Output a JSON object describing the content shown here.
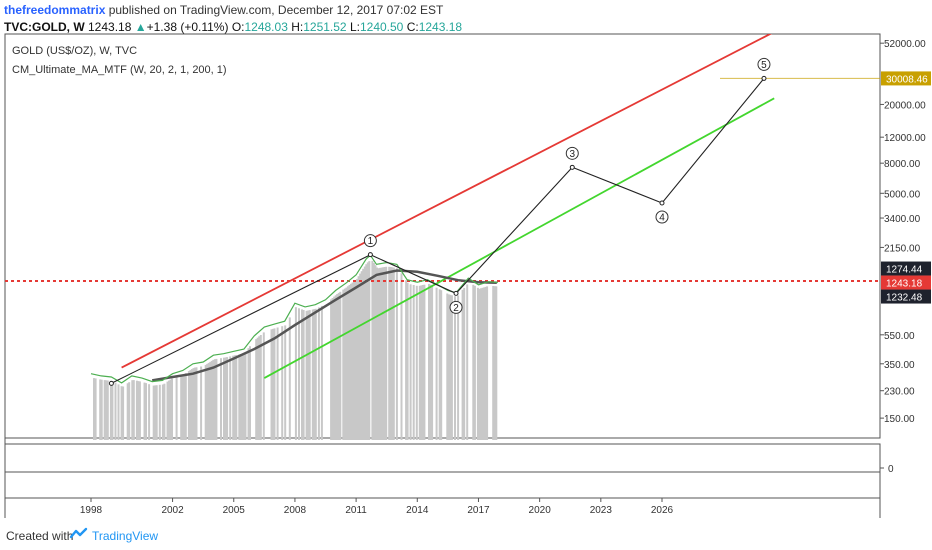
{
  "header": {
    "author": "thefreedommatrix",
    "published": " published on TradingView.com, December 12, 2017 07:02 EST",
    "symbol": "TVC:GOLD, W",
    "last": "1243.18",
    "change": "+1.38 (+0.11%)",
    "o_label": "O:",
    "o_value": "1248.03",
    "h_label": "H:",
    "h_value": "1251.52",
    "l_label": "L:",
    "l_value": "1240.50",
    "c_label": "C:",
    "c_value": "1243.18"
  },
  "legend": {
    "series_title": "GOLD (US$/OZ), W, TVC",
    "indicator": "CM_Ultimate_MA_MTF (W, 20, 2, 1, 200, 1)"
  },
  "footer": {
    "created_with": "Created with",
    "brand": "TradingView"
  },
  "colors": {
    "upper_channel": "#e53935",
    "lower_channel": "#43d62e",
    "dotted_level": "#e53935",
    "moving_average": "#555555",
    "wave_path": "#222222",
    "volume_bars": "#c8c8c8",
    "price_tag_current": "#e53935",
    "price_tag_dark": "#1e222d",
    "price_tag_target": "#c8a000"
  },
  "chart_data": {
    "type": "line",
    "x_axis": {
      "ticks": [
        "1998",
        "2002",
        "2005",
        "2008",
        "2011",
        "2014",
        "2017",
        "2020",
        "2023",
        "2026"
      ]
    },
    "y_axis": {
      "scale": "log",
      "ticks": [
        "52000.00",
        "30008.46",
        "20000.00",
        "12000.00",
        "8000.00",
        "5000.00",
        "3400.00",
        "2150.00",
        "1274.44",
        "1243.18",
        "1232.48",
        "550.00",
        "350.00",
        "230.00",
        "150.00"
      ],
      "range": [
        110,
        60000
      ]
    },
    "price_tags": [
      {
        "value": 30008.46,
        "text": "30008.46",
        "style": "target"
      },
      {
        "value": 1274.44,
        "text": "1274.44",
        "style": "dark"
      },
      {
        "value": 1243.18,
        "text": "1243.18",
        "style": "current"
      },
      {
        "value": 1232.48,
        "text": "1232.48",
        "style": "dark"
      }
    ],
    "indicator_pane": {
      "ticks": [
        "0"
      ]
    },
    "series": [
      {
        "name": "GOLD (US$/OZ), W, TVC",
        "points": [
          [
            1998.0,
            300
          ],
          [
            1998.5,
            290
          ],
          [
            1999.0,
            285
          ],
          [
            1999.5,
            260
          ],
          [
            2000.0,
            290
          ],
          [
            2000.5,
            280
          ],
          [
            2001.0,
            265
          ],
          [
            2001.5,
            270
          ],
          [
            2002.0,
            300
          ],
          [
            2002.5,
            315
          ],
          [
            2003.0,
            350
          ],
          [
            2003.5,
            360
          ],
          [
            2004.0,
            400
          ],
          [
            2004.5,
            410
          ],
          [
            2005.0,
            425
          ],
          [
            2005.5,
            440
          ],
          [
            2006.0,
            540
          ],
          [
            2006.5,
            620
          ],
          [
            2007.0,
            650
          ],
          [
            2007.5,
            680
          ],
          [
            2008.0,
            900
          ],
          [
            2008.5,
            850
          ],
          [
            2009.0,
            880
          ],
          [
            2009.5,
            950
          ],
          [
            2010.0,
            1100
          ],
          [
            2010.5,
            1230
          ],
          [
            2011.0,
            1400
          ],
          [
            2011.5,
            1800
          ],
          [
            2011.7,
            1900
          ],
          [
            2012.0,
            1650
          ],
          [
            2012.5,
            1700
          ],
          [
            2013.0,
            1650
          ],
          [
            2013.5,
            1300
          ],
          [
            2014.0,
            1250
          ],
          [
            2014.5,
            1300
          ],
          [
            2015.0,
            1200
          ],
          [
            2015.5,
            1100
          ],
          [
            2015.9,
            1060
          ],
          [
            2016.5,
            1330
          ],
          [
            2017.0,
            1200
          ],
          [
            2017.5,
            1260
          ],
          [
            2017.95,
            1243.18
          ]
        ]
      },
      {
        "name": "CM_Ultimate_MA_MTF",
        "points": [
          [
            2001.0,
            270
          ],
          [
            2002.0,
            285
          ],
          [
            2003.0,
            300
          ],
          [
            2004.0,
            330
          ],
          [
            2005.0,
            380
          ],
          [
            2006.0,
            440
          ],
          [
            2007.0,
            520
          ],
          [
            2008.0,
            640
          ],
          [
            2009.0,
            780
          ],
          [
            2010.0,
            950
          ],
          [
            2011.0,
            1150
          ],
          [
            2012.0,
            1400
          ],
          [
            2013.0,
            1500
          ],
          [
            2014.0,
            1470
          ],
          [
            2015.0,
            1380
          ],
          [
            2016.0,
            1290
          ],
          [
            2017.0,
            1250
          ],
          [
            2017.9,
            1240
          ]
        ]
      },
      {
        "name": "upper-channel",
        "points": [
          [
            1999.5,
            330
          ],
          [
            2031.5,
            62000
          ]
        ]
      },
      {
        "name": "lower-channel",
        "points": [
          [
            2006.5,
            280
          ],
          [
            2031.5,
            22000
          ]
        ]
      },
      {
        "name": "elliott-wave",
        "points": [
          [
            1999.0,
            258
          ],
          [
            2011.7,
            1920
          ],
          [
            2015.9,
            1050
          ],
          [
            2021.6,
            7500
          ],
          [
            2026.0,
            4300
          ],
          [
            2031.0,
            30008.46
          ]
        ],
        "labels": [
          "",
          "1",
          "2",
          "3",
          "4",
          "5"
        ]
      }
    ],
    "horizontal_levels": [
      {
        "value": 1274.44,
        "style": "dotted"
      },
      {
        "value": 30008.46,
        "style": "target"
      }
    ]
  }
}
